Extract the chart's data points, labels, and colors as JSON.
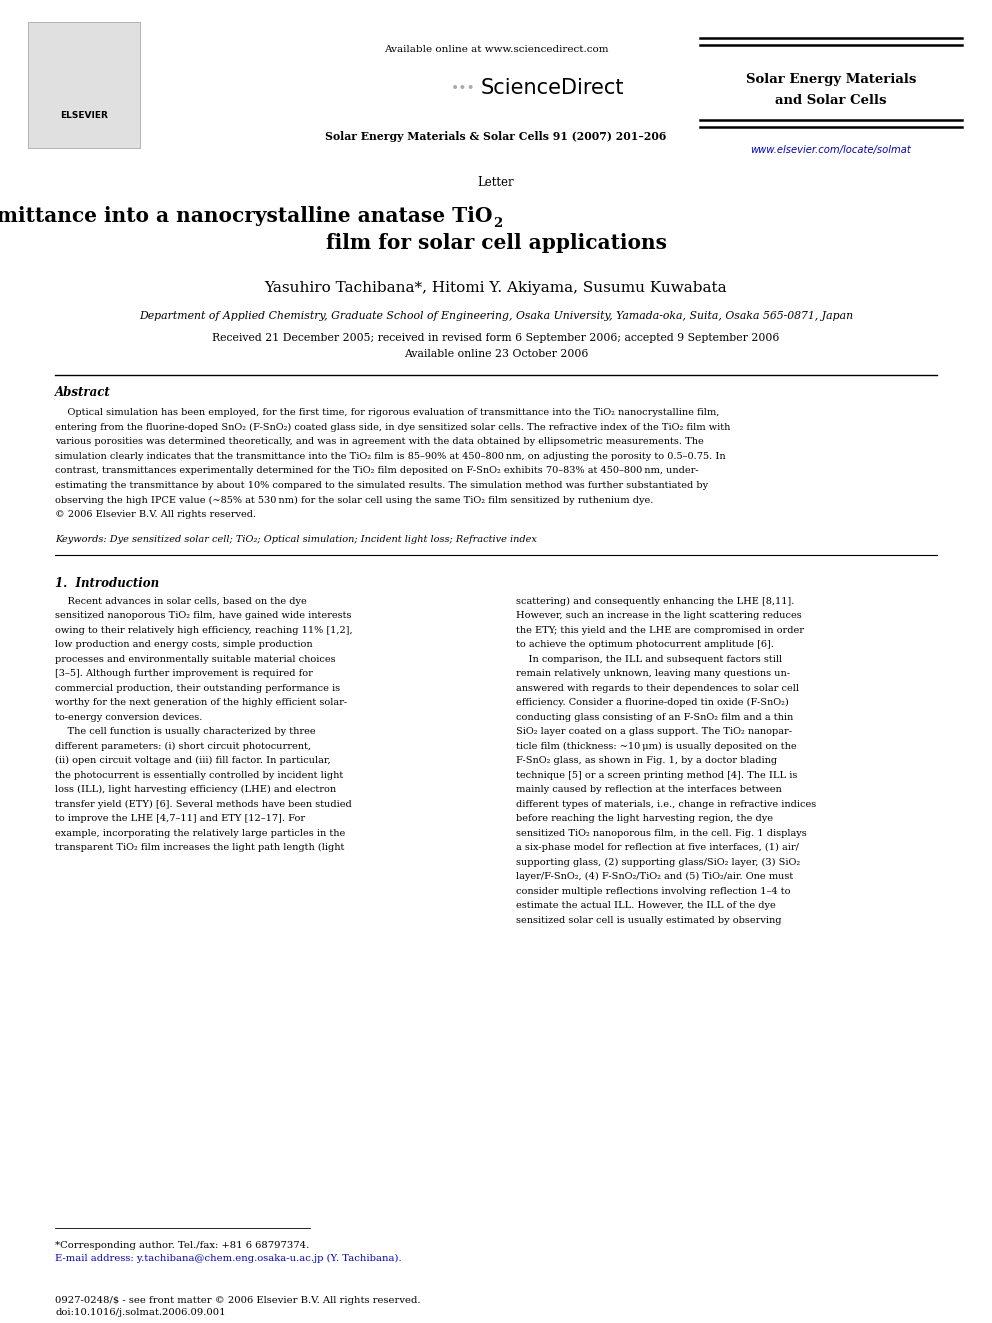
{
  "background_color": "#ffffff",
  "page_width": 9.92,
  "page_height": 13.23,
  "header_available": "Available online at www.sciencedirect.com",
  "header_journal_center": "Solar Energy Materials & Solar Cells 91 (2007) 201–206",
  "header_journal_right1": "Solar Energy Materials",
  "header_journal_right2": "and Solar Cells",
  "header_url": "www.elsevier.com/locate/solmat",
  "header_url_color": "#0000cc",
  "section_label": "Letter",
  "title_line1a": "Optical simulation of transmittance into a nanocrystalline anatase TiO",
  "title_sub": "2",
  "title_line2": "film for solar cell applications",
  "authors": "Yasuhiro Tachibana*, Hitomi Y. Akiyama, Susumu Kuwabata",
  "affiliation": "Department of Applied Chemistry, Graduate School of Engineering, Osaka University, Yamada-oka, Suita, Osaka 565-0871, Japan",
  "received": "Received 21 December 2005; received in revised form 6 September 2006; accepted 9 September 2006",
  "available_online": "Available online 23 October 2006",
  "abstract_title": "Abstract",
  "abstract_lines": [
    "    Optical simulation has been employed, for the first time, for rigorous evaluation of transmittance into the TiO₂ nanocrystalline film,",
    "entering from the fluorine-doped SnO₂ (F-SnO₂) coated glass side, in dye sensitized solar cells. The refractive index of the TiO₂ film with",
    "various porosities was determined theoretically, and was in agreement with the data obtained by ellipsometric measurements. The",
    "simulation clearly indicates that the transmittance into the TiO₂ film is 85–90% at 450–800 nm, on adjusting the porosity to 0.5–0.75. In",
    "contrast, transmittances experimentally determined for the TiO₂ film deposited on F-SnO₂ exhibits 70–83% at 450–800 nm, under-",
    "estimating the transmittance by about 10% compared to the simulated results. The simulation method was further substantiated by",
    "observing the high IPCE value (~85% at 530 nm) for the solar cell using the same TiO₂ film sensitized by ruthenium dye.",
    "© 2006 Elsevier B.V. All rights reserved."
  ],
  "keywords": "Keywords: Dye sensitized solar cell; TiO₂; Optical simulation; Incident light loss; Refractive index",
  "intro_title": "1.  Introduction",
  "left_col_lines": [
    "    Recent advances in solar cells, based on the dye",
    "sensitized nanoporous TiO₂ film, have gained wide interests",
    "owing to their relatively high efficiency, reaching 11% [1,2],",
    "low production and energy costs, simple production",
    "processes and environmentally suitable material choices",
    "[3–5]. Although further improvement is required for",
    "commercial production, their outstanding performance is",
    "worthy for the next generation of the highly efficient solar-",
    "to-energy conversion devices.",
    "    The cell function is usually characterized by three",
    "different parameters: (i) short circuit photocurrent,",
    "(ii) open circuit voltage and (iii) fill factor. In particular,",
    "the photocurrent is essentially controlled by incident light",
    "loss (ILL), light harvesting efficiency (LHE) and electron",
    "transfer yield (ETY) [6]. Several methods have been studied",
    "to improve the LHE [4,7–11] and ETY [12–17]. For",
    "example, incorporating the relatively large particles in the",
    "transparent TiO₂ film increases the light path length (light"
  ],
  "right_col_lines": [
    "scattering) and consequently enhancing the LHE [8,11].",
    "However, such an increase in the light scattering reduces",
    "the ETY; this yield and the LHE are compromised in order",
    "to achieve the optimum photocurrent amplitude [6].",
    "    In comparison, the ILL and subsequent factors still",
    "remain relatively unknown, leaving many questions un-",
    "answered with regards to their dependences to solar cell",
    "efficiency. Consider a fluorine-doped tin oxide (F-SnO₂)",
    "conducting glass consisting of an F-SnO₂ film and a thin",
    "SiO₂ layer coated on a glass support. The TiO₂ nanopar-",
    "ticle film (thickness: ~10 μm) is usually deposited on the",
    "F-SnO₂ glass, as shown in Fig. 1, by a doctor blading",
    "technique [5] or a screen printing method [4]. The ILL is",
    "mainly caused by reflection at the interfaces between",
    "different types of materials, i.e., change in refractive indices",
    "before reaching the light harvesting region, the dye",
    "sensitized TiO₂ nanoporous film, in the cell. Fig. 1 displays",
    "a six-phase model for reflection at five interfaces, (1) air/",
    "supporting glass, (2) supporting glass/SiO₂ layer, (3) SiO₂",
    "layer/F-SnO₂, (4) F-SnO₂/TiO₂ and (5) TiO₂/air. One must",
    "consider multiple reflections involving reflection 1–4 to",
    "estimate the actual ILL. However, the ILL of the dye",
    "sensitized solar cell is usually estimated by observing"
  ],
  "footnote1": "*Corresponding author. Tel./fax: +81 6 68797374.",
  "footnote2": "E-mail address: y.tachibana@chem.eng.osaka-u.ac.jp (Y. Tachibana).",
  "footer1": "0927-0248/$ - see front matter © 2006 Elsevier B.V. All rights reserved.",
  "footer2": "doi:10.1016/j.solmat.2006.09.001"
}
